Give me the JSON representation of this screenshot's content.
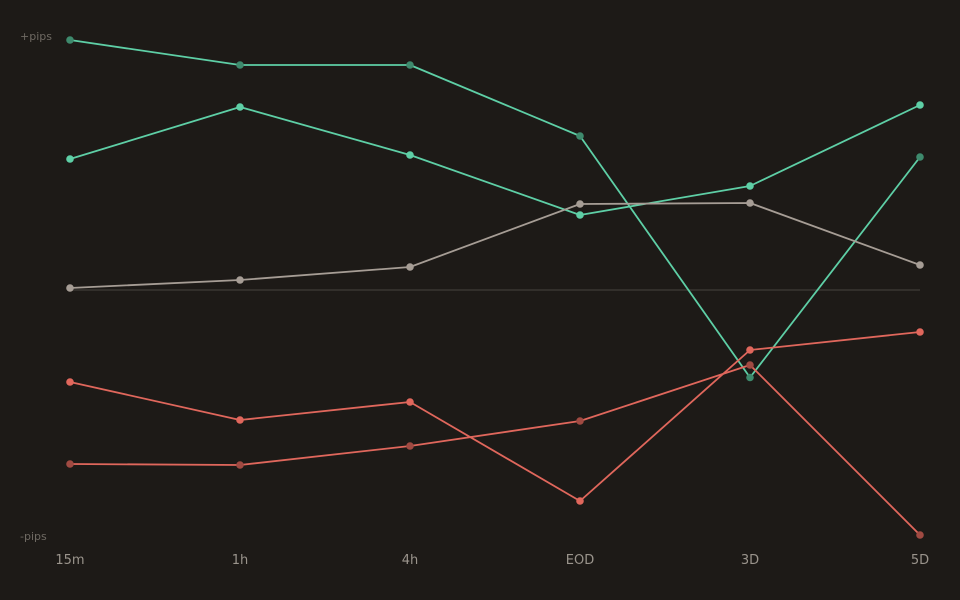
{
  "chart_data": {
    "type": "line",
    "title": "",
    "xlabel": "",
    "ylabel": "",
    "y_top_label": "+pips",
    "y_bottom_label": "-pips",
    "categories": [
      "15m",
      "1h",
      "4h",
      "EOD",
      "3D",
      "5D"
    ],
    "ylim": [
      -100,
      100
    ],
    "baseline": 0,
    "grid": false,
    "legend": "none",
    "series": [
      {
        "color": "#5ecfa6",
        "point_color": "#3e8a6d",
        "values": [
          100,
          90,
          90,
          61.6,
          -35,
          53.2
        ]
      },
      {
        "color": "#5ecfa6",
        "point_color": "#5ecfa6",
        "values": [
          52.4,
          73.2,
          54,
          30,
          41.6,
          74
        ]
      },
      {
        "color": "#a69d95",
        "point_color": "#a69d95",
        "values": [
          0.8,
          4,
          9.2,
          34.4,
          34.8,
          10
        ]
      },
      {
        "color": "#e0675c",
        "point_color": "#e0675c",
        "values": [
          -36.8,
          -52,
          -44.8,
          -84.4,
          -24,
          -16.8
        ]
      },
      {
        "color": "#e0675c",
        "point_color": "#a04a42",
        "values": [
          -69.6,
          -70,
          -62.4,
          -52.4,
          -30,
          -98
        ]
      }
    ]
  }
}
